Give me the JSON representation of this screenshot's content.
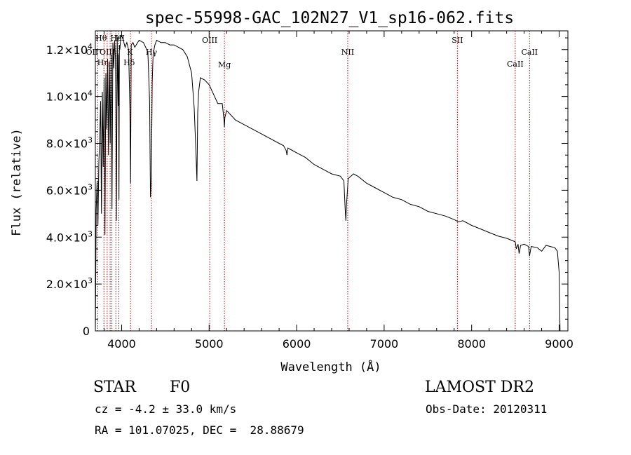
{
  "chart_data": {
    "type": "line",
    "title": "spec-55998-GAC_102N27_V1_sp16-062.fits",
    "xlabel": "Wavelength (Å)",
    "ylabel": "Flux (relative)",
    "xlim": [
      3700,
      9100
    ],
    "ylim": [
      0,
      12800
    ],
    "x_ticks": [
      4000,
      5000,
      6000,
      7000,
      8000,
      9000
    ],
    "x_tick_labels": [
      "4000",
      "5000",
      "6000",
      "7000",
      "8000",
      "9000"
    ],
    "y_ticks": [
      0,
      2000,
      4000,
      6000,
      8000,
      10000,
      12000
    ],
    "y_tick_labels": [
      {
        "mant": "0",
        "exp": ""
      },
      {
        "mant": "2.0×10",
        "exp": "3"
      },
      {
        "mant": "4.0×10",
        "exp": "3"
      },
      {
        "mant": "6.0×10",
        "exp": "3"
      },
      {
        "mant": "8.0×10",
        "exp": "3"
      },
      {
        "mant": "1.0×10",
        "exp": "4"
      },
      {
        "mant": "1.2×10",
        "exp": "4"
      }
    ],
    "series": [
      {
        "name": "flux",
        "x": [
          3700,
          3705,
          3710,
          3720,
          3730,
          3740,
          3750,
          3760,
          3770,
          3780,
          3790,
          3800,
          3810,
          3820,
          3830,
          3840,
          3850,
          3860,
          3870,
          3880,
          3890,
          3900,
          3910,
          3920,
          3930,
          3935,
          3940,
          3950,
          3960,
          3965,
          3970,
          3975,
          3980,
          3990,
          4000,
          4020,
          4040,
          4060,
          4080,
          4095,
          4102,
          4110,
          4130,
          4150,
          4200,
          4250,
          4300,
          4320,
          4330,
          4340,
          4350,
          4360,
          4380,
          4400,
          4450,
          4500,
          4550,
          4600,
          4650,
          4700,
          4750,
          4800,
          4830,
          4850,
          4861,
          4870,
          4880,
          4900,
          4950,
          5000,
          5050,
          5100,
          5150,
          5170,
          5175,
          5180,
          5200,
          5250,
          5300,
          5400,
          5500,
          5600,
          5700,
          5800,
          5850,
          5880,
          5890,
          5900,
          5950,
          6000,
          6100,
          6200,
          6300,
          6400,
          6500,
          6540,
          6555,
          6563,
          6570,
          6590,
          6650,
          6700,
          6800,
          6900,
          7000,
          7100,
          7200,
          7300,
          7400,
          7500,
          7600,
          7700,
          7800,
          7850,
          7900,
          8000,
          8100,
          8200,
          8300,
          8400,
          8498,
          8510,
          8530,
          8542,
          8560,
          8600,
          8650,
          8662,
          8680,
          8750,
          8800,
          8850,
          8900,
          8950,
          8980,
          9000,
          9010
        ],
        "y": [
          0,
          2500,
          5200,
          6400,
          4500,
          7200,
          8200,
          9800,
          5000,
          10200,
          7000,
          10800,
          4100,
          11000,
          8600,
          11600,
          7500,
          11500,
          8000,
          11800,
          5200,
          12300,
          11200,
          12400,
          11600,
          9500,
          4700,
          12500,
          9600,
          11800,
          5600,
          12200,
          12000,
          12500,
          12600,
          12400,
          12100,
          12300,
          12000,
          9500,
          6300,
          12200,
          12300,
          12100,
          12400,
          12300,
          11900,
          9800,
          5700,
          6500,
          10600,
          11800,
          12200,
          12400,
          12300,
          12300,
          12200,
          12200,
          12100,
          12000,
          11700,
          11000,
          9500,
          7600,
          6400,
          9300,
          10200,
          10800,
          10700,
          10500,
          10100,
          9700,
          9700,
          9000,
          8700,
          9100,
          9400,
          9200,
          9000,
          8800,
          8600,
          8400,
          8200,
          8000,
          7900,
          7700,
          7500,
          7800,
          7700,
          7600,
          7400,
          7100,
          6900,
          6700,
          6600,
          6400,
          5200,
          4700,
          5400,
          6500,
          6700,
          6600,
          6300,
          6100,
          5900,
          5700,
          5600,
          5400,
          5300,
          5100,
          5000,
          4900,
          4750,
          4650,
          4700,
          4500,
          4350,
          4200,
          4050,
          3950,
          3800,
          3500,
          3700,
          3300,
          3650,
          3700,
          3600,
          3200,
          3600,
          3550,
          3400,
          3650,
          3600,
          3550,
          3400,
          2500,
          0
        ]
      }
    ],
    "line_markers": [
      {
        "label": "Hθ",
        "x": 3798
      },
      {
        "label": "OII",
        "x": 3727
      },
      {
        "label": "Hη",
        "x": 3835
      },
      {
        "label": "HeI",
        "x": 3889
      },
      {
        "label": "OIII",
        "x": 3869
      },
      {
        "label": "H",
        "x": 3968
      },
      {
        "label": "K",
        "x": 3934
      },
      {
        "label": "Hδ",
        "x": 4102
      },
      {
        "label": "Hγ",
        "x": 4341
      },
      {
        "label": "OIII",
        "x": 5007
      },
      {
        "label": "Mg",
        "x": 5175
      },
      {
        "label": "NII",
        "x": 6584
      },
      {
        "label": "SII",
        "x": 7837
      },
      {
        "label": "CaII",
        "x": 8498
      },
      {
        "label": "CaII",
        "x": 8662
      }
    ]
  },
  "info": {
    "object_type": "STAR",
    "subclass": "F0",
    "survey": "LAMOST DR2",
    "redshift": "cz = -4.2 ± 33.0 km/s",
    "obs_date": "Obs-Date: 20120311",
    "coords": "RA = 101.07025, DEC =  28.88679"
  },
  "colors": {
    "line": "#000000",
    "marker": "#c00000",
    "axis": "#000000",
    "background": "#ffffff"
  }
}
